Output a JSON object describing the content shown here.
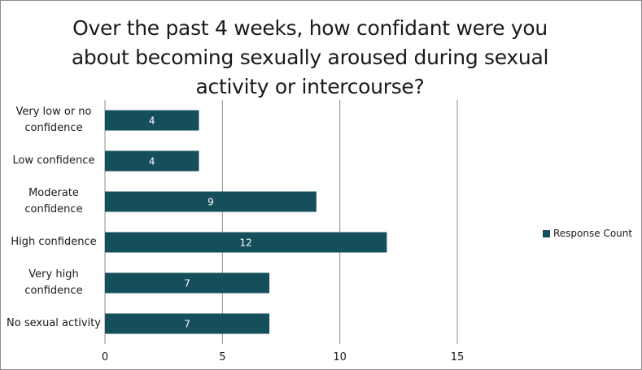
{
  "chart_data": {
    "type": "bar",
    "orientation": "horizontal",
    "title": "Over the past 4 weeks, how confidant were you about becoming sexually aroused during sexual activity or intercourse?",
    "categories": [
      "Very low or no confidence",
      "Low confidence",
      "Moderate confidence",
      "High confidence",
      "Very high confidence",
      "No sexual activity"
    ],
    "series": [
      {
        "name": "Response Count",
        "values": [
          4,
          4,
          9,
          12,
          7,
          7
        ],
        "color": "#164f5c"
      }
    ],
    "xlim": [
      0,
      15
    ],
    "xticks": [
      0,
      5,
      10,
      15
    ],
    "grid": true,
    "legend": "right",
    "data_label_color": "#ffffff"
  }
}
